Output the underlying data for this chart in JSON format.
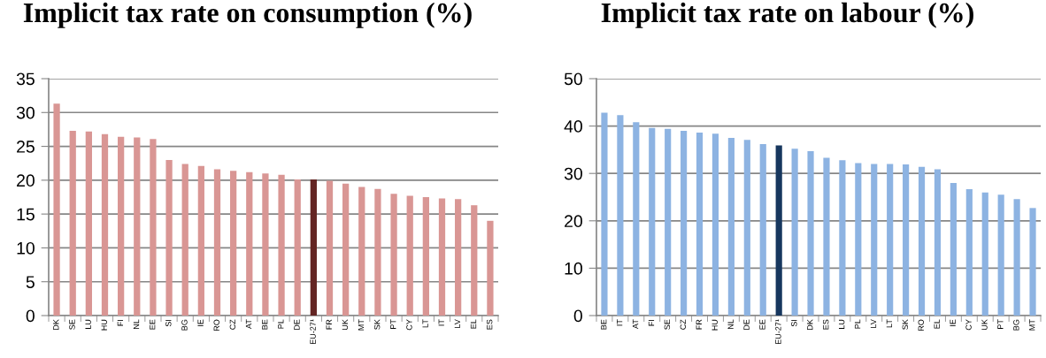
{
  "chart_data": [
    {
      "type": "bar",
      "title": "Implicit tax rate on consumption (%)",
      "categories": [
        "DK",
        "SE",
        "LU",
        "HU",
        "FI",
        "NL",
        "EE",
        "SI",
        "BG",
        "IE",
        "RO",
        "CZ",
        "AT",
        "BE",
        "PL",
        "DE",
        "EU-27¹",
        "FR",
        "UK",
        "MT",
        "SK",
        "PT",
        "CY",
        "LT",
        "IT",
        "LV",
        "EL",
        "ES"
      ],
      "values": [
        31.3,
        27.3,
        27.2,
        26.8,
        26.4,
        26.3,
        26.1,
        23.0,
        22.4,
        22.1,
        21.6,
        21.4,
        21.2,
        21.0,
        20.8,
        20.1,
        20.1,
        19.9,
        19.5,
        19.0,
        18.7,
        18.0,
        17.7,
        17.5,
        17.3,
        17.2,
        16.3,
        14.0
      ],
      "colors": [
        "#d99694",
        "#d99694",
        "#d99694",
        "#d99694",
        "#d99694",
        "#d99694",
        "#d99694",
        "#d99694",
        "#d99694",
        "#d99694",
        "#d99694",
        "#d99694",
        "#d99694",
        "#d99694",
        "#d99694",
        "#d99694",
        "#632523",
        "#d99694",
        "#d99694",
        "#d99694",
        "#d99694",
        "#d99694",
        "#d99694",
        "#d99694",
        "#d99694",
        "#d99694",
        "#d99694",
        "#d99694"
      ],
      "ylim": [
        0,
        35
      ],
      "yticks": [
        0,
        5,
        10,
        15,
        20,
        25,
        30,
        35
      ],
      "grid": "y",
      "legend": false
    },
    {
      "type": "bar",
      "title": "Implicit tax rate on labour (%)",
      "categories": [
        "BE",
        "IT",
        "AT",
        "FI",
        "SE",
        "CZ",
        "FR",
        "HU",
        "NL",
        "DE",
        "EE",
        "EU-27¹",
        "SI",
        "DK",
        "ES",
        "LU",
        "PL",
        "LV",
        "LT",
        "SK",
        "RO",
        "EL",
        "IE",
        "CY",
        "UK",
        "PT",
        "BG",
        "MT"
      ],
      "values": [
        42.8,
        42.3,
        40.8,
        39.6,
        39.4,
        39.0,
        38.6,
        38.4,
        37.5,
        37.1,
        36.2,
        35.9,
        35.2,
        34.7,
        33.3,
        32.8,
        32.2,
        32.0,
        32.0,
        31.9,
        31.4,
        30.9,
        28.0,
        26.7,
        26.0,
        25.5,
        24.6,
        22.7
      ],
      "colors": [
        "#8db3e2",
        "#8db3e2",
        "#8db3e2",
        "#8db3e2",
        "#8db3e2",
        "#8db3e2",
        "#8db3e2",
        "#8db3e2",
        "#8db3e2",
        "#8db3e2",
        "#8db3e2",
        "#17375e",
        "#8db3e2",
        "#8db3e2",
        "#8db3e2",
        "#8db3e2",
        "#8db3e2",
        "#8db3e2",
        "#8db3e2",
        "#8db3e2",
        "#8db3e2",
        "#8db3e2",
        "#8db3e2",
        "#8db3e2",
        "#8db3e2",
        "#8db3e2",
        "#8db3e2",
        "#8db3e2"
      ],
      "ylim": [
        0,
        50
      ],
      "yticks": [
        0,
        10,
        20,
        30,
        40,
        50
      ],
      "grid": "y",
      "legend": false
    }
  ]
}
